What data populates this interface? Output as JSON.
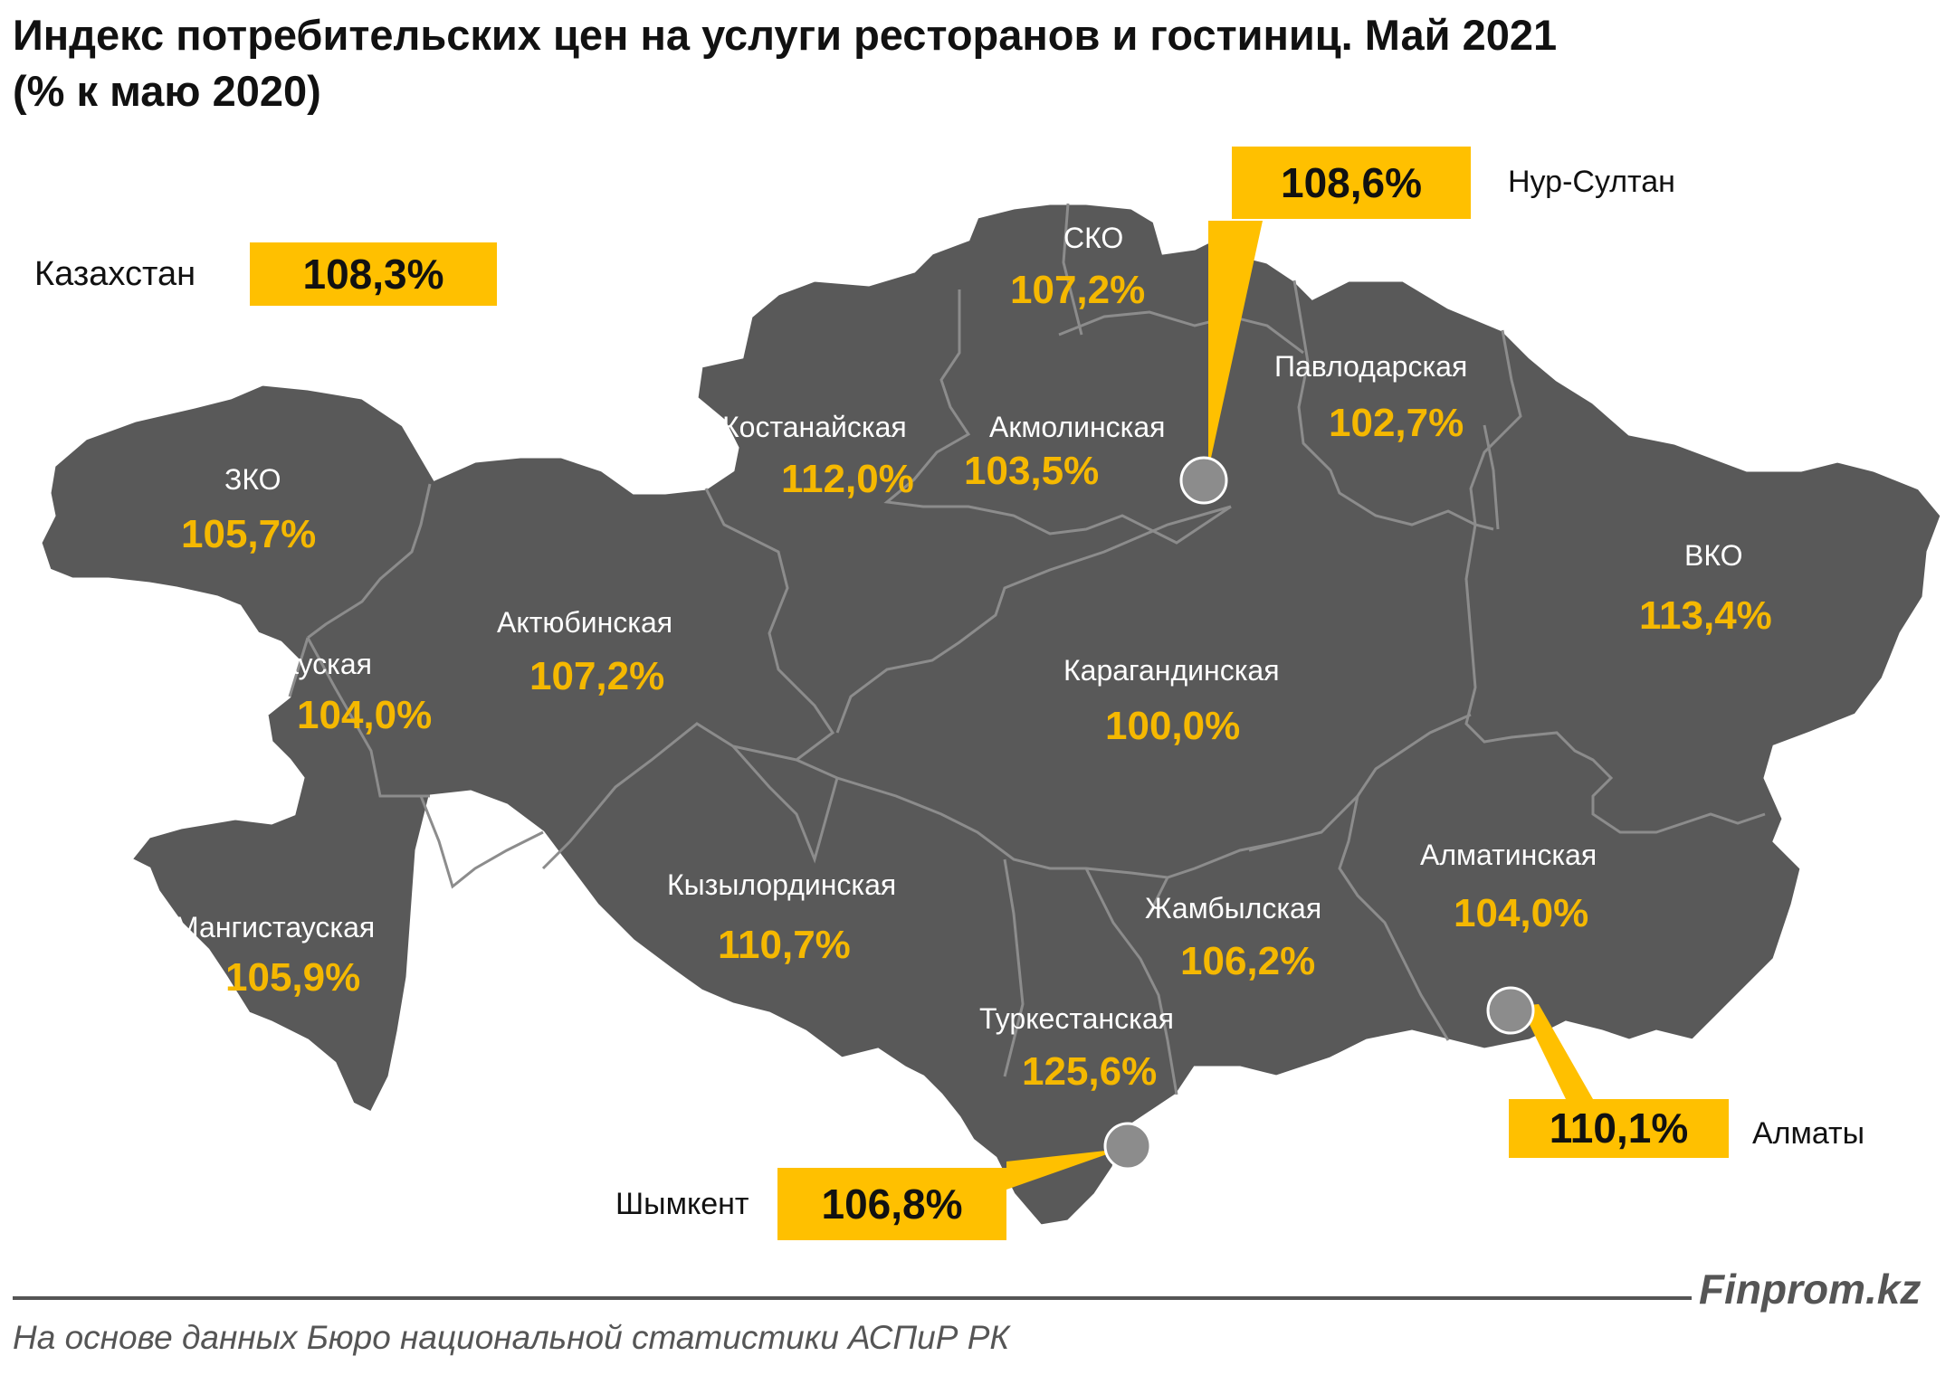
{
  "title": {
    "line1": "Индекс потребительских цен на услуги ресторанов и гостиниц. Май 2021",
    "line2": "(% к маю 2020)"
  },
  "kazakhstan": {
    "label": "Казахстан",
    "value": "108,3%"
  },
  "regions": {
    "zko": {
      "name": "ЗКО",
      "value": "105,7%"
    },
    "atyrau": {
      "name": "Атырауская",
      "value": "104,0%"
    },
    "mangystau": {
      "name": "Мангистауская",
      "value": "105,9%"
    },
    "aktobe": {
      "name": "Актюбинская",
      "value": "107,2%"
    },
    "kostanay": {
      "name": "Костанайская",
      "value": "112,0%"
    },
    "sko": {
      "name": "СКО",
      "value": "107,2%"
    },
    "akmola": {
      "name": "Акмолинская",
      "value": "103,5%"
    },
    "pavlodar": {
      "name": "Павлодарская",
      "value": "102,7%"
    },
    "vko": {
      "name": "ВКО",
      "value": "113,4%"
    },
    "karaganda": {
      "name": "Карагандинская",
      "value": "100,0%"
    },
    "kyzylorda": {
      "name": "Кызылординская",
      "value": "110,7%"
    },
    "zhambyl": {
      "name": "Жамбылская",
      "value": "106,2%"
    },
    "almaty_region": {
      "name": "Алматинская",
      "value": "104,0%"
    },
    "turkestan": {
      "name": "Туркестанская",
      "value": "125,6%"
    }
  },
  "cities": {
    "nur_sultan": {
      "name": "Нур-Султан",
      "value": "108,6%"
    },
    "almaty": {
      "name": "Алматы",
      "value": "110,1%"
    },
    "shymkent": {
      "name": "Шымкент",
      "value": "106,8%"
    }
  },
  "colors": {
    "map_fill": "#595959",
    "border": "#8c8c8c",
    "value_text": "#f5b800",
    "callout": "#ffc000"
  },
  "footer": {
    "brand": "Finprom.kz",
    "source": "На основе данных Бюро национальной статистики АСПиР РК"
  }
}
